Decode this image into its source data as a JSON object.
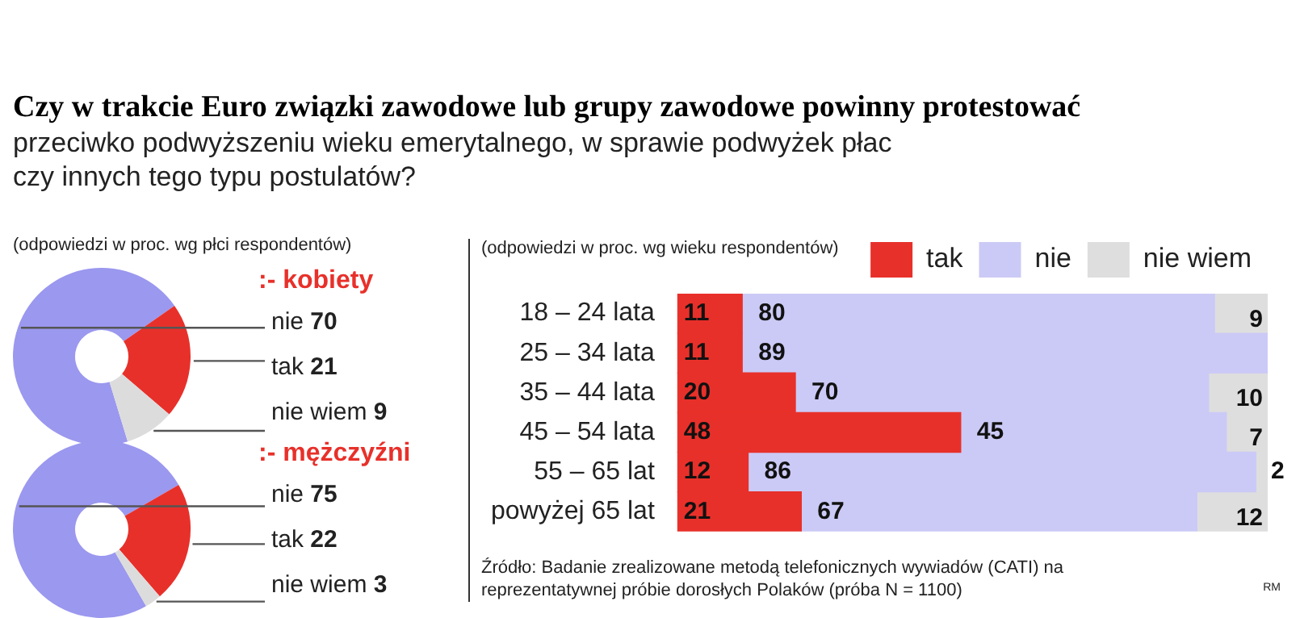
{
  "chart_data": [
    {
      "type": "other",
      "title": "Czy w trakcie Euro związki zawodowe lub grupy zawodowe powinny protestować",
      "subtitle": "przeciwko podwyższeniu wieku emerytalnego, w sprawie podwyżek płac czy innych tego typu postulatów?"
    },
    {
      "type": "donut",
      "title": ":- kobiety",
      "subtitle": "(odpowiedzi w proc. wg płci respondentów)",
      "categories": [
        "nie",
        "tak",
        "nie wiem"
      ],
      "values": [
        70,
        21,
        9
      ],
      "colors": [
        "#9b98ef",
        "#e8302a",
        "#dcdcdc"
      ],
      "data_labels": true
    },
    {
      "type": "donut",
      "title": ":- mężczyźni",
      "categories": [
        "nie",
        "tak",
        "nie wiem"
      ],
      "values": [
        75,
        22,
        3
      ],
      "colors": [
        "#9b98ef",
        "#e8302a",
        "#dcdcdc"
      ],
      "data_labels": true
    },
    {
      "type": "bar",
      "orientation": "horizontal",
      "stacked": true,
      "subtitle": "(odpowiedzi w proc. wg wieku respondentów)",
      "categories": [
        "18 – 24 lata",
        "25 – 34 lata",
        "35 – 44 lata",
        "45 – 54 lata",
        "55 – 65 lat",
        "powyżej 65 lat"
      ],
      "series": [
        {
          "name": "tak",
          "color": "#e8302a",
          "values": [
            11,
            11,
            20,
            48,
            12,
            21
          ]
        },
        {
          "name": "nie",
          "color": "#cbcaf6",
          "values": [
            80,
            89,
            70,
            45,
            86,
            67
          ]
        },
        {
          "name": "nie wiem",
          "color": "#dedede",
          "values": [
            9,
            null,
            10,
            7,
            2,
            12
          ]
        }
      ],
      "xlim": [
        0,
        100
      ],
      "tick_labels": "y",
      "legend": "top right",
      "data_labels": true,
      "annotations": [
        "Źródło: Badanie zrealizowane metodą telefonicznych wywiadów (CATI) na reprezentatywnej próbie dorosłych Polaków (próba N = 1100)",
        "RM"
      ]
    }
  ]
}
